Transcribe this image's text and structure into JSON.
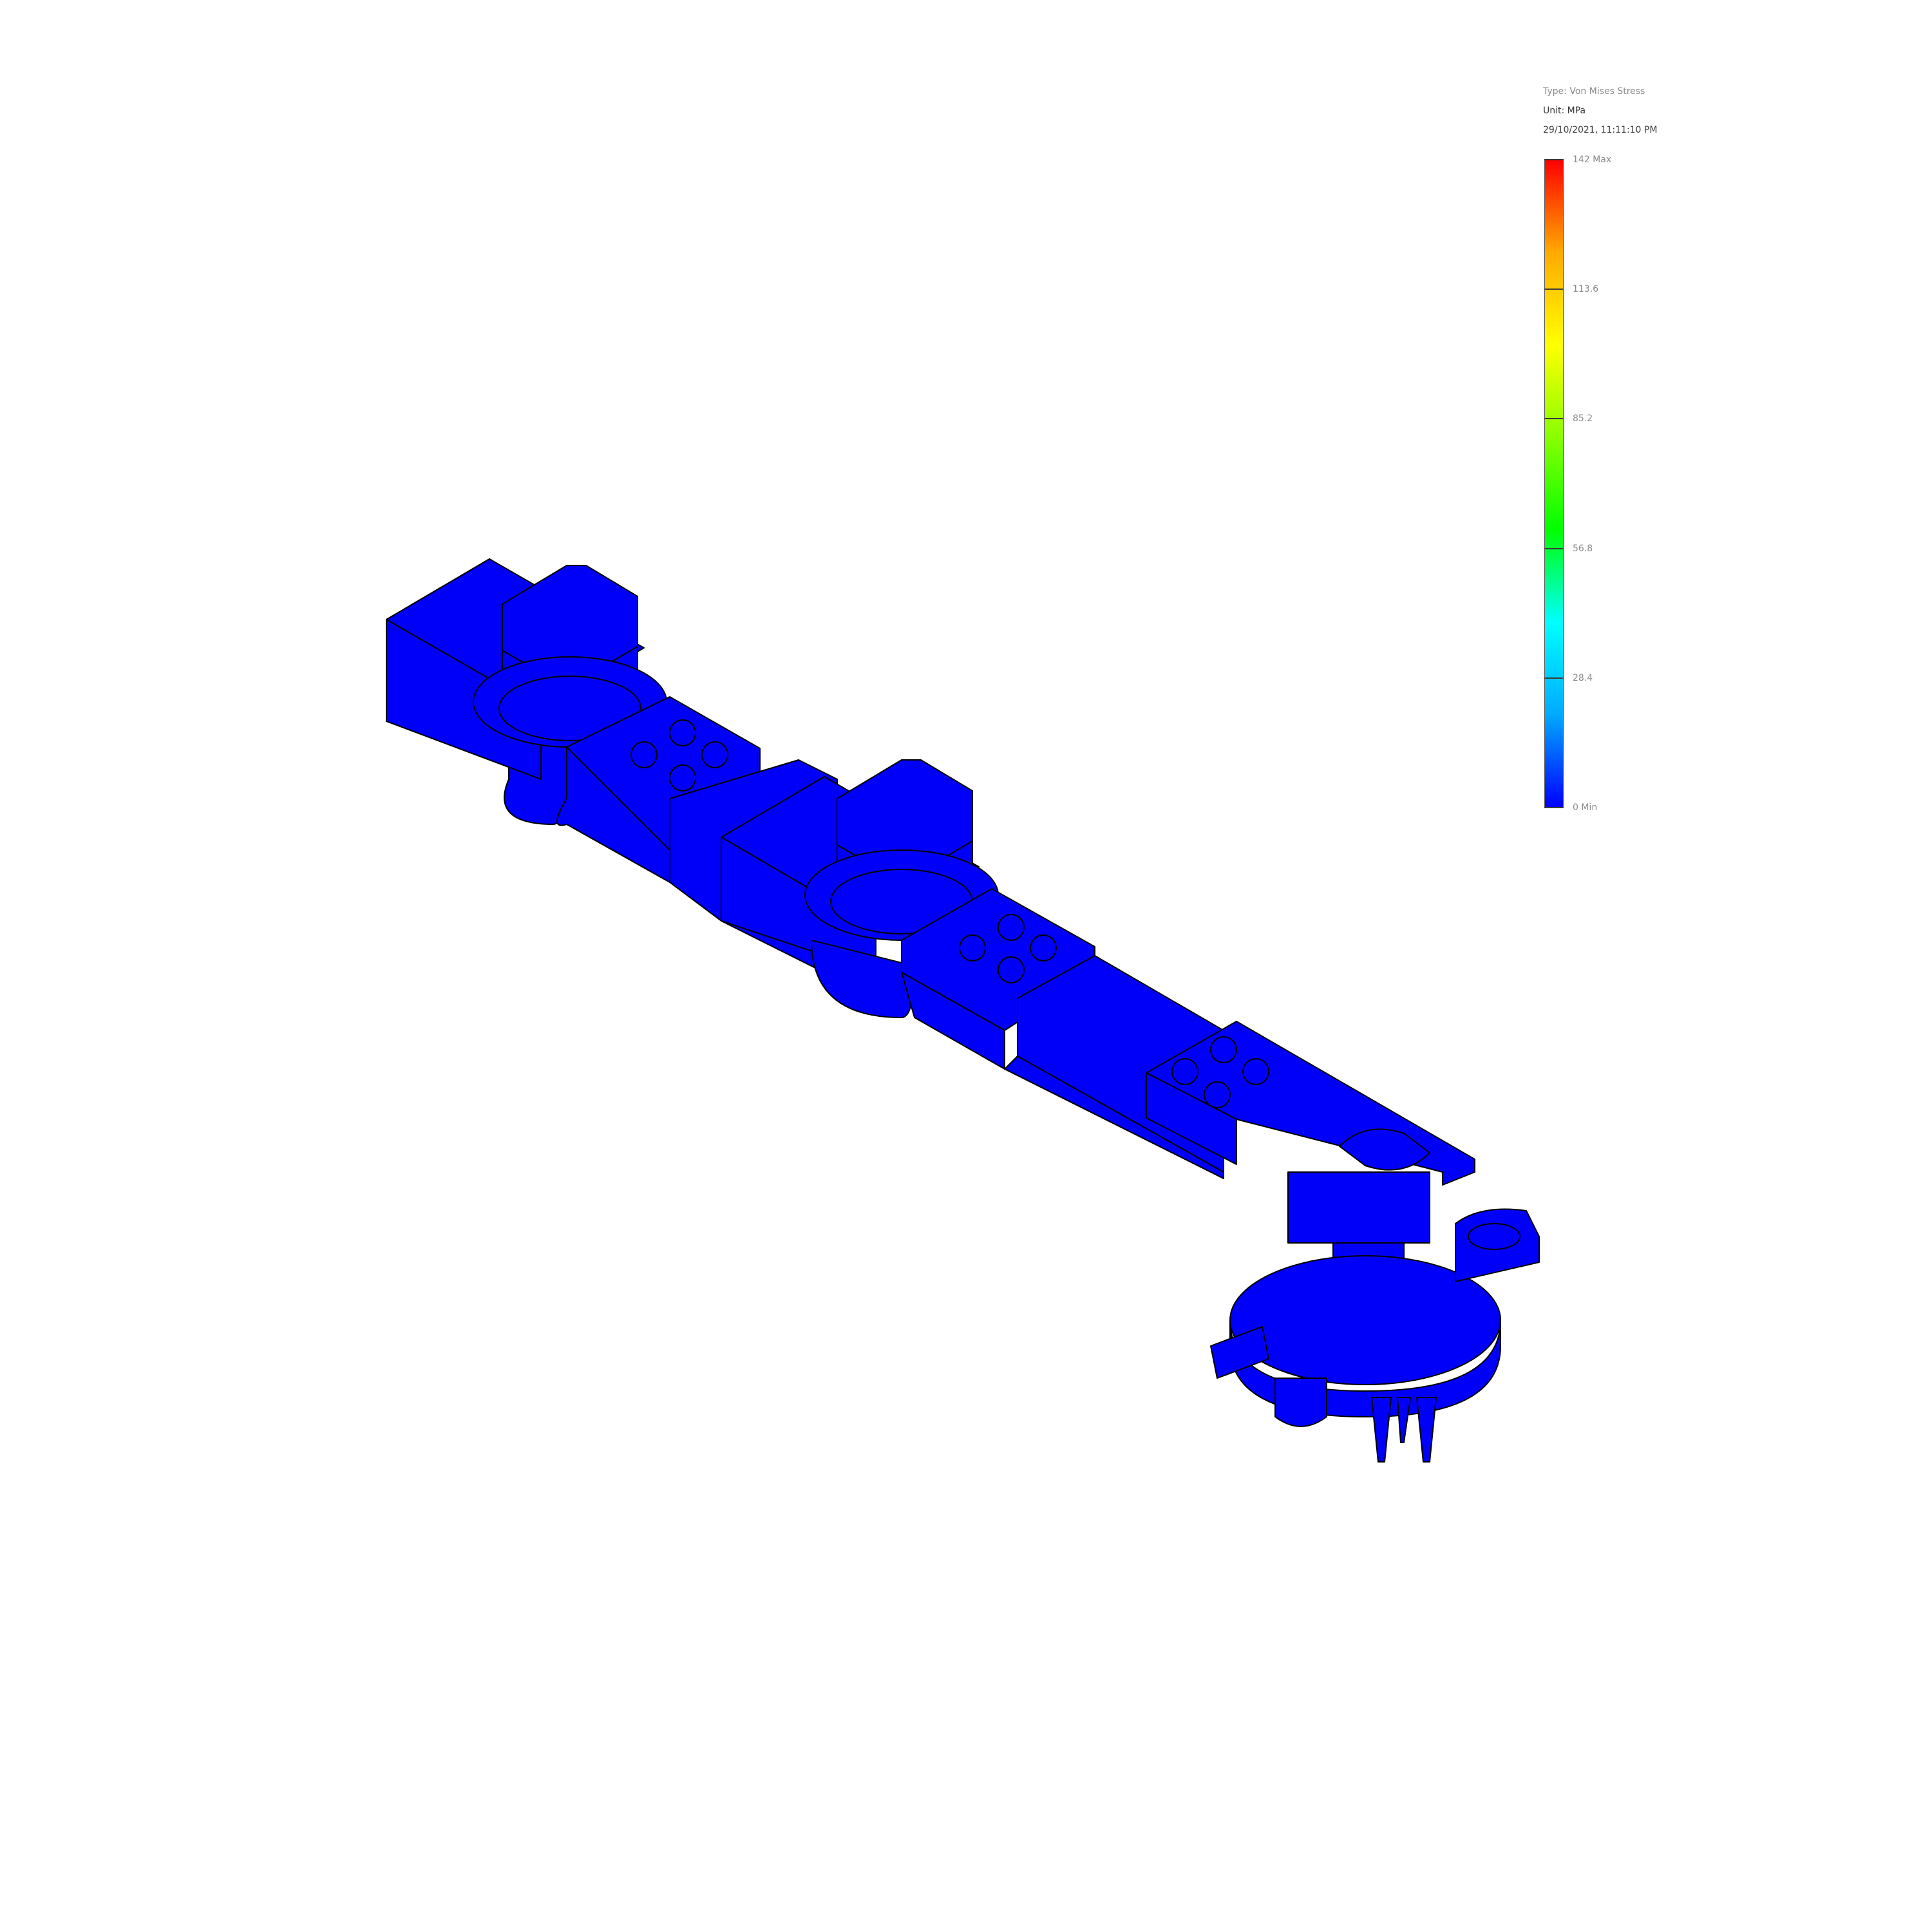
{
  "legend": {
    "type_label": "Type: Von Mises Stress",
    "unit_label": "Unit: MPa",
    "timestamp": "29/10/2021, 11:11:10 PM",
    "colorbar_colors": [
      "#0000ff",
      "#00aaff",
      "#00ffff",
      "#00ff00",
      "#88ff00",
      "#ffff00",
      "#ffaa00",
      "#ff0000"
    ],
    "ticks": [
      {
        "value": 142,
        "label": "142 Max"
      },
      {
        "value": 113.6,
        "label": "113.6"
      },
      {
        "value": 85.2,
        "label": "85.2"
      },
      {
        "value": 56.8,
        "label": "56.8"
      },
      {
        "value": 28.4,
        "label": "28.4"
      },
      {
        "value": 0,
        "label": "0 Min"
      }
    ],
    "range": [
      0,
      142
    ]
  },
  "model": {
    "fill_color": "#0000f8",
    "outline_color": "#000000"
  }
}
